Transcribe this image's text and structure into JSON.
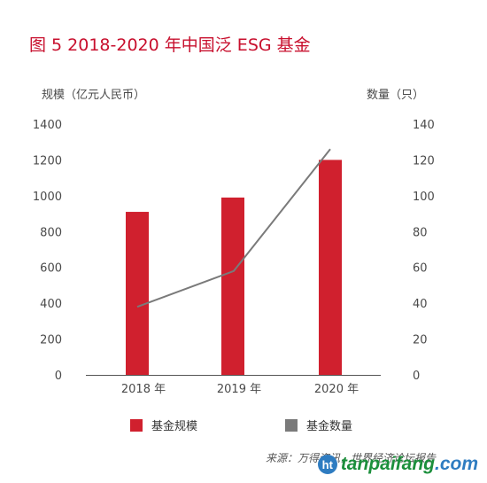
{
  "chart_data": {
    "type": "bar+line",
    "title": "图 5 2018-2020 年中国泛 ESG 基金",
    "categories": [
      "2018 年",
      "2019 年",
      "2020 年"
    ],
    "y_left": {
      "label": "规模（亿元人民币）",
      "ylim": [
        0,
        1400
      ],
      "ticks": [
        0,
        200,
        400,
        600,
        800,
        1000,
        1200,
        1400
      ]
    },
    "y_right": {
      "label": "数量（只）",
      "ylim": [
        0,
        140
      ],
      "ticks": [
        0,
        20,
        40,
        60,
        80,
        100,
        120,
        140
      ]
    },
    "series": [
      {
        "name": "基金规模",
        "type": "bar",
        "axis": "left",
        "color": "#d0202e",
        "values": [
          910,
          990,
          1200
        ]
      },
      {
        "name": "基金数量",
        "type": "line",
        "axis": "right",
        "color": "#7a7a7a",
        "x": [
          2018.0,
          2019.0,
          2020.0
        ],
        "values": [
          38,
          58,
          126
        ]
      }
    ],
    "grid": false,
    "legend": "bottom-center"
  },
  "legend": {
    "bar_label": "基金规模",
    "line_label": "基金数量"
  },
  "source": "来源：万得资讯，世界经济论坛报告",
  "watermark": {
    "logo": "ht",
    "part1": "tanpaifang",
    "part2": ".com"
  }
}
